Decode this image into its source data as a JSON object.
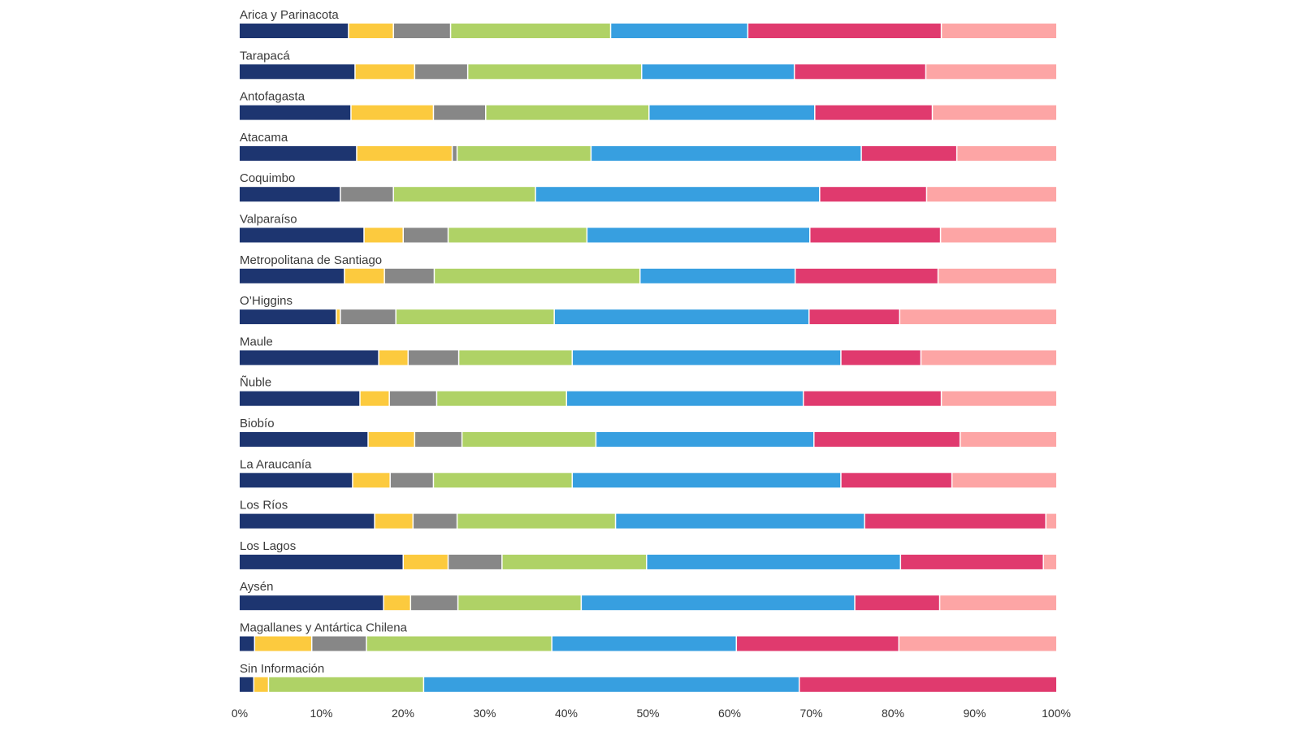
{
  "chart_data": {
    "type": "bar",
    "orientation": "horizontal",
    "stacked": true,
    "normalized_100": true,
    "title": "",
    "xlabel": "",
    "ylabel": "",
    "xlim": [
      0,
      100
    ],
    "x_ticks": [
      "0%",
      "10%",
      "20%",
      "30%",
      "40%",
      "50%",
      "60%",
      "70%",
      "80%",
      "90%",
      "100%"
    ],
    "segment_colors": [
      "#1d3570",
      "#fcca3e",
      "#878787",
      "#afd266",
      "#379fe0",
      "#e03a6e",
      "#fda5a5"
    ],
    "categories": [
      "Arica y Parinacota",
      "Tarapacá",
      "Antofagasta",
      "Atacama",
      "Coquimbo",
      "Valparaíso",
      "Metropolitana de Santiago",
      "O’Higgins",
      "Maule",
      "Ñuble",
      "Biobío",
      "La Araucanía",
      "Los Ríos",
      "Los Lagos",
      "Aysén",
      "Magallanes y Antártica Chilena",
      "Sin Información"
    ],
    "rows": [
      [
        13.4,
        5.5,
        7.0,
        19.6,
        16.8,
        23.7,
        14.0
      ],
      [
        14.2,
        7.3,
        6.5,
        21.3,
        18.7,
        16.1,
        15.9
      ],
      [
        13.7,
        10.1,
        6.4,
        20.0,
        20.3,
        14.4,
        15.1
      ],
      [
        14.4,
        11.7,
        0.6,
        16.4,
        33.1,
        11.7,
        12.1
      ],
      [
        12.4,
        0.0,
        6.5,
        17.4,
        34.8,
        13.1,
        15.8
      ],
      [
        15.3,
        4.8,
        5.5,
        17.0,
        27.3,
        16.0,
        14.1
      ],
      [
        12.9,
        4.9,
        6.1,
        25.2,
        19.0,
        17.5,
        14.4
      ],
      [
        11.9,
        0.5,
        6.8,
        19.4,
        31.2,
        11.1,
        19.1
      ],
      [
        17.1,
        3.6,
        6.2,
        13.9,
        32.9,
        9.8,
        16.5
      ],
      [
        14.8,
        3.6,
        5.8,
        15.9,
        29.0,
        16.9,
        14.0
      ],
      [
        15.8,
        5.7,
        5.8,
        16.4,
        26.7,
        17.9,
        11.7
      ],
      [
        13.9,
        4.6,
        5.3,
        17.0,
        32.9,
        13.6,
        12.7
      ],
      [
        16.6,
        4.7,
        5.4,
        19.4,
        30.5,
        22.2,
        1.2
      ],
      [
        20.1,
        5.5,
        6.6,
        17.7,
        31.1,
        17.5,
        1.5
      ],
      [
        17.7,
        3.3,
        5.8,
        15.1,
        33.5,
        10.4,
        14.2
      ],
      [
        1.9,
        7.0,
        6.7,
        22.7,
        22.6,
        19.9,
        19.2
      ],
      [
        1.8,
        1.8,
        0.0,
        19.0,
        46.0,
        31.4,
        0.0
      ]
    ]
  }
}
